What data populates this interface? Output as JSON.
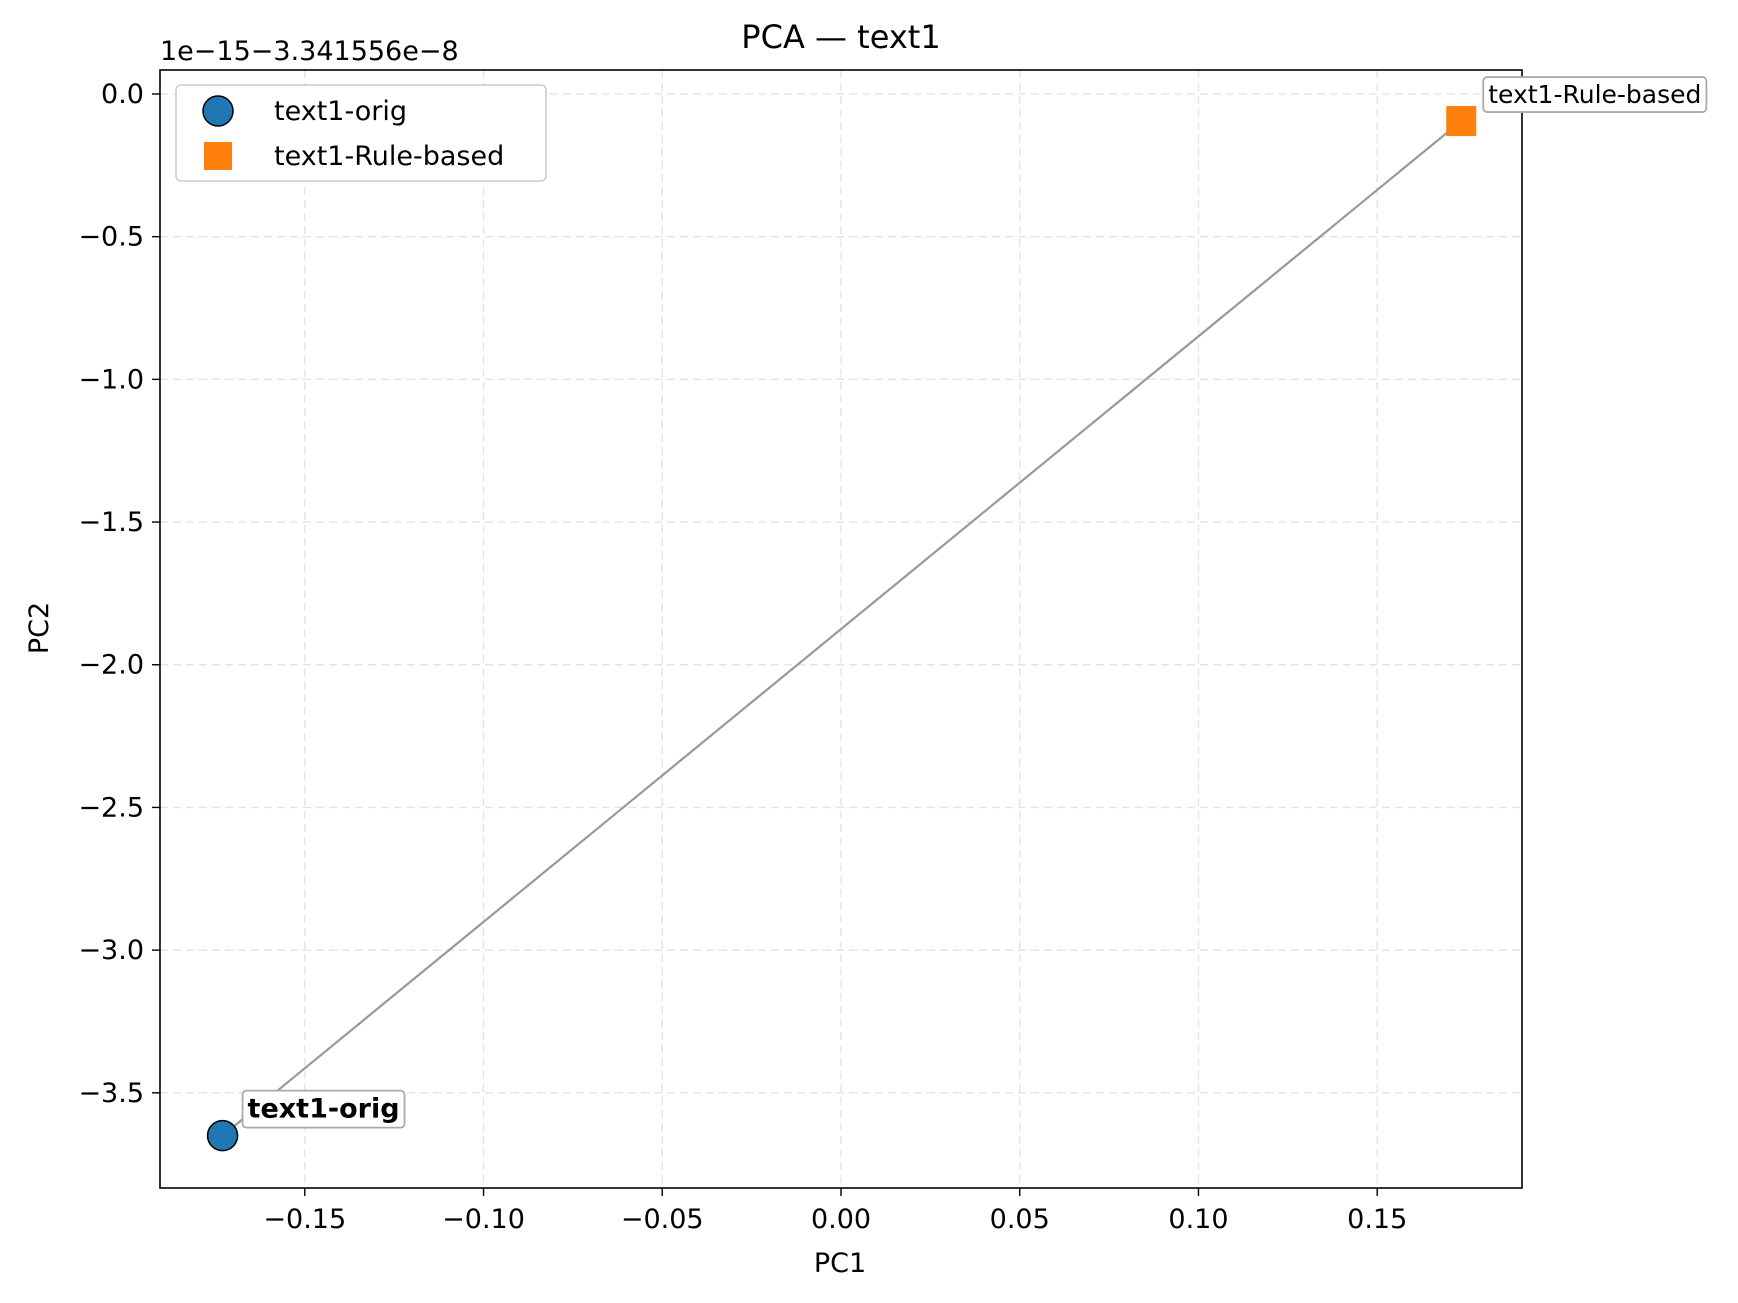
{
  "chart_data": {
    "type": "scatter",
    "title": "PCA — text1",
    "xlabel": "PC1",
    "ylabel": "PC2",
    "y_offset_label": "1e−15−3.341556e−8",
    "xlim": [
      -0.1905,
      0.1905
    ],
    "ylim": [
      -3.8335,
      0.084
    ],
    "xticks": [
      -0.15,
      -0.1,
      -0.05,
      0.0,
      0.05,
      0.1,
      0.15
    ],
    "xtick_labels": [
      "−0.15",
      "−0.10",
      "−0.05",
      "0.00",
      "0.05",
      "0.10",
      "0.15"
    ],
    "yticks": [
      0.0,
      -0.5,
      -1.0,
      -1.5,
      -2.0,
      -2.5,
      -3.0,
      -3.5
    ],
    "ytick_labels": [
      "0.0",
      "−0.5",
      "−1.0",
      "−1.5",
      "−2.0",
      "−2.5",
      "−3.0",
      "−3.5"
    ],
    "grid": true,
    "legend_position": "upper-left",
    "series": [
      {
        "name": "text1-orig",
        "marker": "circle",
        "color": "#1f77b4",
        "points": [
          {
            "x": -0.173,
            "y": -3.65
          }
        ],
        "annotation": "text1-orig",
        "annotation_bold": true
      },
      {
        "name": "text1-Rule-based",
        "marker": "square",
        "color": "#ff7f0e",
        "points": [
          {
            "x": 0.1735,
            "y": -0.095
          }
        ],
        "annotation": "text1-Rule-based",
        "annotation_bold": false
      }
    ],
    "arrow": {
      "from": {
        "x": -0.173,
        "y": -3.65
      },
      "to": {
        "x": 0.1735,
        "y": -0.095
      },
      "color": "#999999"
    }
  }
}
